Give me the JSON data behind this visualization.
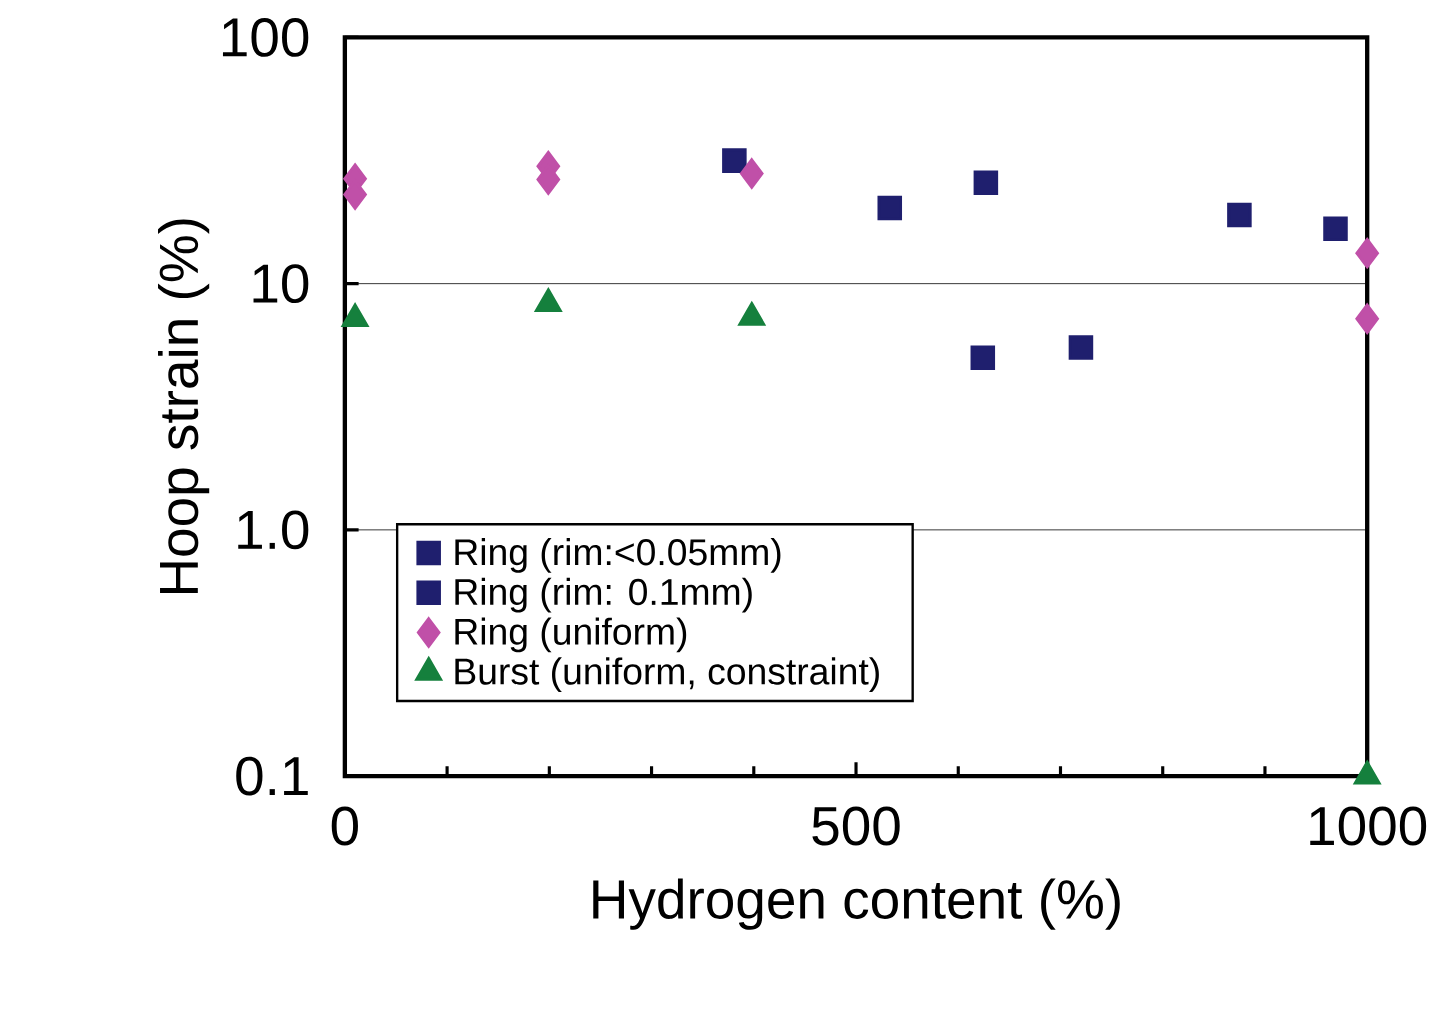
{
  "chart_data": {
    "type": "scatter",
    "xlabel": "Hydrogen content (%)",
    "ylabel": "Hoop strain (%)",
    "xlim": [
      0,
      1000
    ],
    "xticks": [
      0,
      500,
      1000
    ],
    "ylim": [
      0.1,
      100
    ],
    "yticks": [
      100,
      10,
      {
        "value": 1,
        "label": "1.0"
      },
      0.1
    ],
    "log": true,
    "grid": "y",
    "legend": "bottom left",
    "series": [
      {
        "name": "Ring (rim:<0.05mm)",
        "color": "#1f1f6e",
        "marker": "square",
        "x": [
          381,
          533,
          627,
          875,
          969
        ],
        "values": [
          31.6,
          20.3,
          25.7,
          19,
          16.7
        ]
      },
      {
        "name": "Ring (rim: 0.1mm)",
        "color": "#1f1f6e",
        "marker": "square",
        "x": [
          624,
          720
        ],
        "values": [
          5.0,
          5.5
        ]
      },
      {
        "name": "Ring (uniform)",
        "color": "#c050a8",
        "marker": "diamond",
        "x": [
          10,
          10,
          199,
          199,
          398,
          1000,
          1000
        ],
        "values": [
          26.7,
          23,
          30,
          26.5,
          28,
          13.3,
          7.2
        ]
      },
      {
        "name": "Burst (uniform, constraint)",
        "color": "#15803d",
        "marker": "triangle",
        "x": [
          10,
          199,
          398,
          1000
        ],
        "values": [
          7.2,
          8.3,
          7.3,
          0.1
        ]
      }
    ]
  }
}
